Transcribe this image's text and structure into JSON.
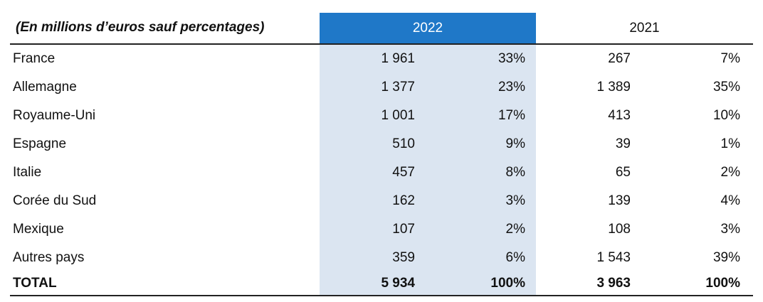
{
  "table": {
    "header": {
      "title": "(En millions d’euros sauf percentages)",
      "year_current": "2022",
      "year_previous": "2021"
    },
    "rows": [
      {
        "country": "France",
        "v2022": "1 961",
        "p2022": "33%",
        "v2021": "267",
        "p2021": "7%"
      },
      {
        "country": "Allemagne",
        "v2022": "1 377",
        "p2022": "23%",
        "v2021": "1 389",
        "p2021": "35%"
      },
      {
        "country": "Royaume-Uni",
        "v2022": "1 001",
        "p2022": "17%",
        "v2021": "413",
        "p2021": "10%"
      },
      {
        "country": "Espagne",
        "v2022": "510",
        "p2022": "9%",
        "v2021": "39",
        "p2021": "1%"
      },
      {
        "country": "Italie",
        "v2022": "457",
        "p2022": "8%",
        "v2021": "65",
        "p2021": "2%"
      },
      {
        "country": "Corée du Sud",
        "v2022": "162",
        "p2022": "3%",
        "v2021": "139",
        "p2021": "4%"
      },
      {
        "country": "Mexique",
        "v2022": "107",
        "p2022": "2%",
        "v2021": "108",
        "p2021": "3%"
      },
      {
        "country": "Autres pays",
        "v2022": "359",
        "p2022": "6%",
        "v2021": "1 543",
        "p2021": "39%"
      }
    ],
    "total": {
      "country": "TOTAL",
      "v2022": "5 934",
      "p2022": "100%",
      "v2021": "3 963",
      "p2021": "100%"
    }
  },
  "colors": {
    "header_2022_bg": "#1f78c8",
    "column_2022_bg": "#dbe5f1",
    "rule": "#222222"
  }
}
